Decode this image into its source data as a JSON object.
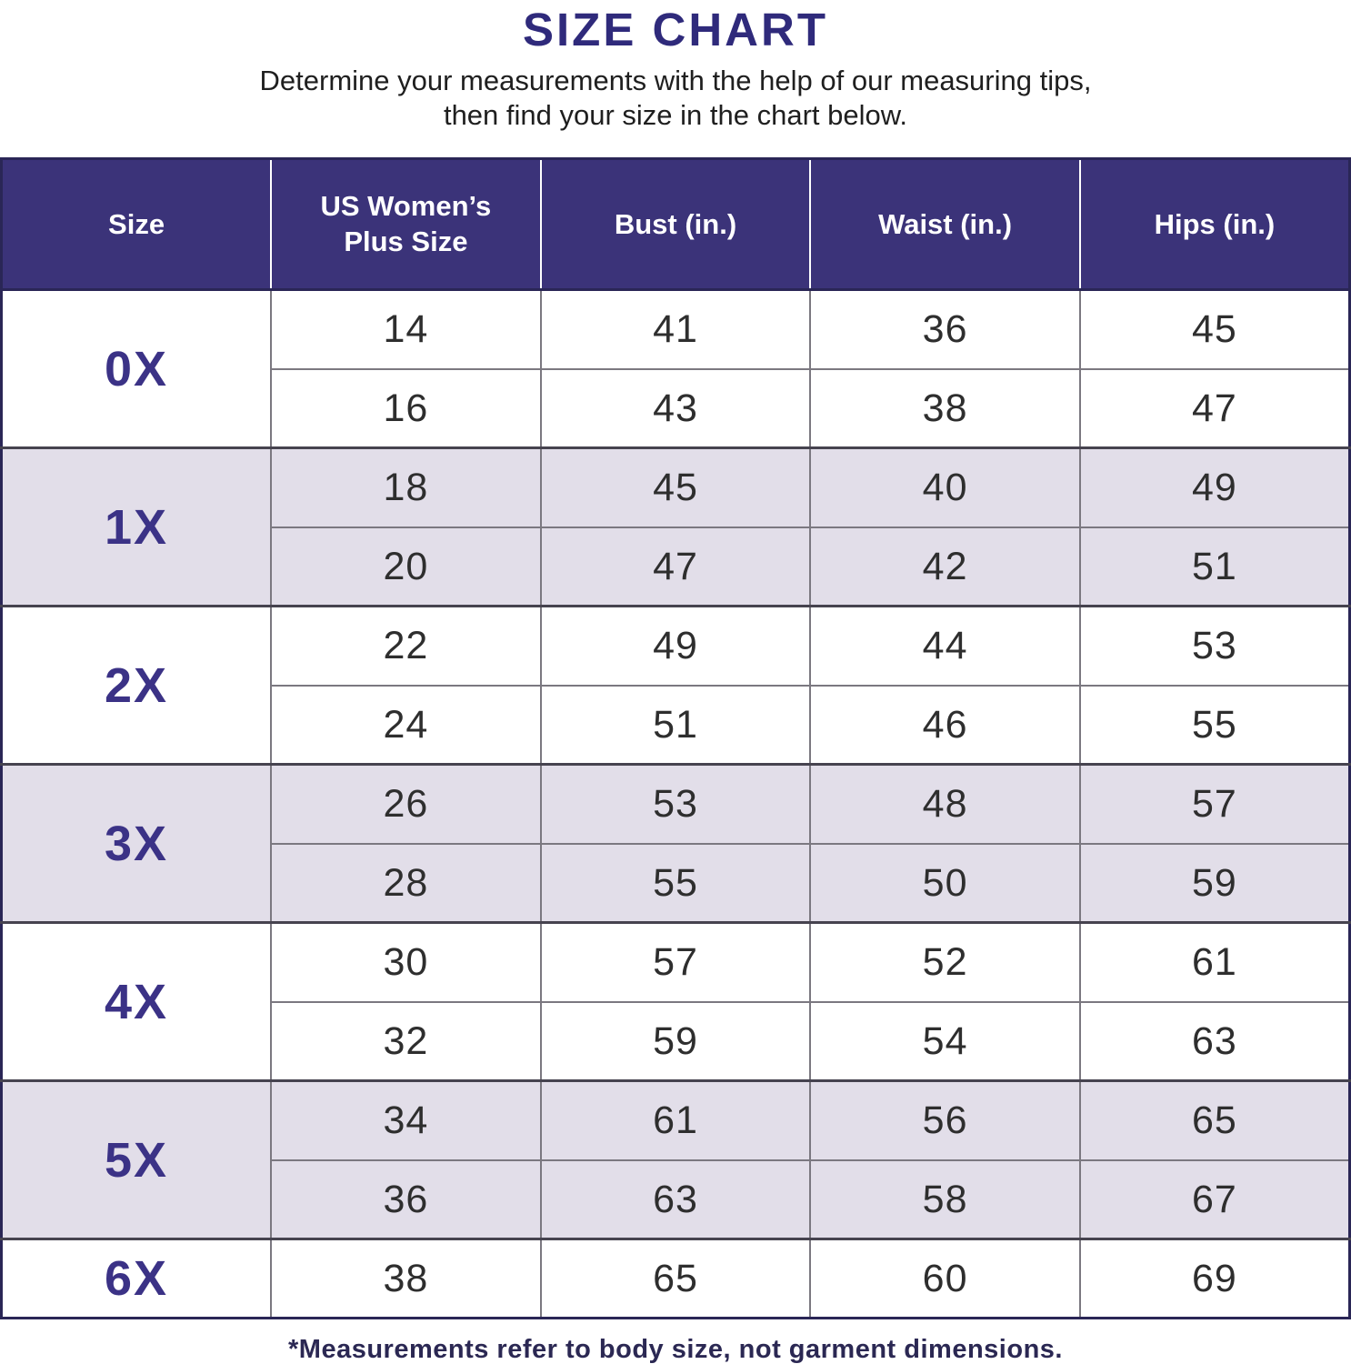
{
  "page": {
    "title": "SIZE CHART",
    "subtitle_line1": "Determine your measurements with the help of our measuring tips,",
    "subtitle_line2": "then find your size in the chart below.",
    "footnote": "*Measurements refer to body size, not garment dimensions."
  },
  "chart_data": {
    "type": "table",
    "columns": [
      "Size",
      "US Women’s Plus Size",
      "Bust (in.)",
      "Waist (in.)",
      "Hips (in.)"
    ],
    "groups": [
      {
        "size": "0X",
        "shaded": false,
        "rows": [
          [
            14,
            41,
            36,
            45
          ],
          [
            16,
            43,
            38,
            47
          ]
        ]
      },
      {
        "size": "1X",
        "shaded": true,
        "rows": [
          [
            18,
            45,
            40,
            49
          ],
          [
            20,
            47,
            42,
            51
          ]
        ]
      },
      {
        "size": "2X",
        "shaded": false,
        "rows": [
          [
            22,
            49,
            44,
            53
          ],
          [
            24,
            51,
            46,
            55
          ]
        ]
      },
      {
        "size": "3X",
        "shaded": true,
        "rows": [
          [
            26,
            53,
            48,
            57
          ],
          [
            28,
            55,
            50,
            59
          ]
        ]
      },
      {
        "size": "4X",
        "shaded": false,
        "rows": [
          [
            30,
            57,
            52,
            61
          ],
          [
            32,
            59,
            54,
            63
          ]
        ]
      },
      {
        "size": "5X",
        "shaded": true,
        "rows": [
          [
            34,
            61,
            56,
            65
          ],
          [
            36,
            63,
            58,
            67
          ]
        ]
      },
      {
        "size": "6X",
        "shaded": false,
        "rows": [
          [
            38,
            65,
            60,
            69
          ]
        ]
      }
    ]
  },
  "colors": {
    "header_bg": "#3b3379",
    "title_text": "#2f2a7b",
    "size_text": "#3b3286",
    "shaded_row": "#e2dee9",
    "table_border": "#2a2656",
    "footnote_text": "#2b2853"
  }
}
